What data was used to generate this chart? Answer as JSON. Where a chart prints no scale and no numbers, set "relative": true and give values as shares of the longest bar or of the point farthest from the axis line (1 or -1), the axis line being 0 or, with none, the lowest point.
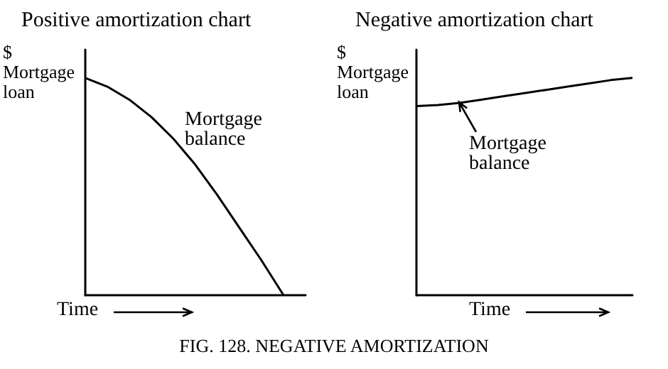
{
  "chart_data": [
    {
      "type": "line",
      "title": "Positive amortization chart",
      "ylabel": "$ Mortgage loan",
      "xlabel": "Time",
      "relative": true,
      "annotations": [
        "Mortgage balance",
        "FIG. 128. NEGATIVE AMORTIZATION"
      ],
      "categories": [
        null,
        null,
        null,
        null,
        null,
        null,
        null,
        null,
        null,
        null,
        null
      ],
      "series": [
        {
          "color": "#000000",
          "values": [
            1,
            0.96,
            0.9,
            0.82,
            0.72,
            0.6,
            0.46,
            0.31,
            0.16,
            0,
            null
          ]
        }
      ]
    },
    {
      "type": "line",
      "title": "Negative amortization chart",
      "ylabel": "$ Mortgage loan",
      "xlabel": "Time",
      "relative": true,
      "annotations": [
        "Mortgage balance"
      ],
      "categories": [
        null,
        null,
        null,
        null,
        null,
        null,
        null,
        null,
        null,
        null,
        null
      ],
      "series": [
        {
          "color": "#000000",
          "values": [
            0.87,
            0.875,
            0.885,
            0.9,
            0.915,
            0.93,
            0.945,
            0.96,
            0.975,
            0.99,
            1
          ]
        }
      ]
    }
  ]
}
